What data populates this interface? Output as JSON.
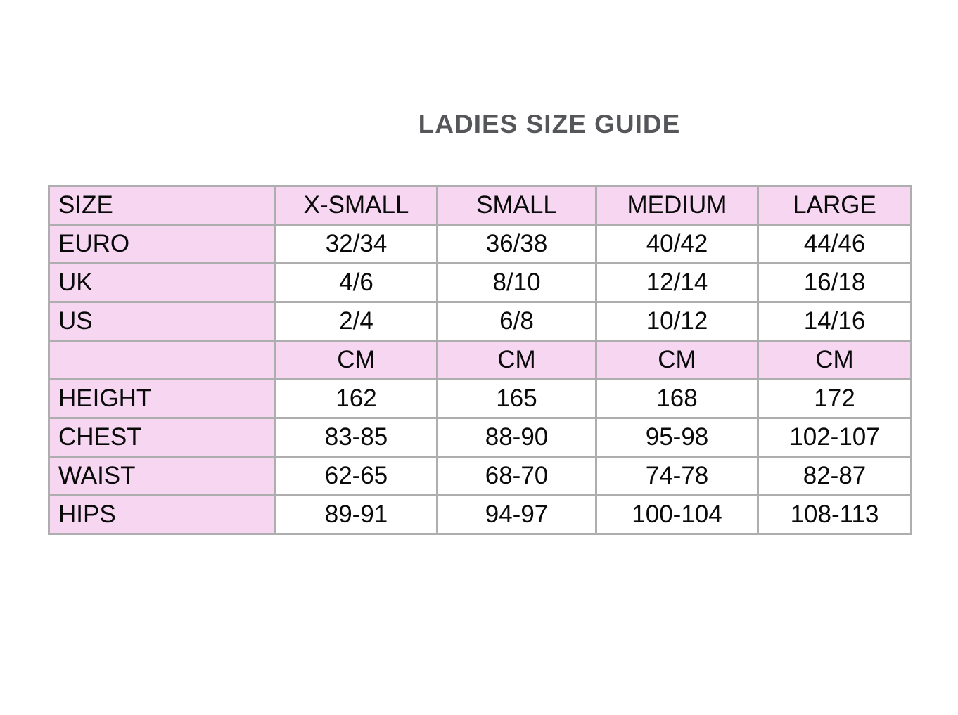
{
  "title": "LADIES SIZE GUIDE",
  "colors": {
    "row_pink": "#f7d6f2",
    "border_gray": "#aeaeae",
    "title_gray": "#55565a",
    "cell_text": "#0a0a0a",
    "background": "#ffffff"
  },
  "table": {
    "header": [
      "SIZE",
      "X-SMALL",
      "SMALL",
      "MEDIUM",
      "LARGE"
    ],
    "rows": [
      {
        "label": "EURO",
        "values": [
          "32/34",
          "36/38",
          "40/42",
          "44/46"
        ],
        "highlight": false
      },
      {
        "label": "UK",
        "values": [
          "4/6",
          "8/10",
          "12/14",
          "16/18"
        ],
        "highlight": false
      },
      {
        "label": "US",
        "values": [
          "2/4",
          "6/8",
          "10/12",
          "14/16"
        ],
        "highlight": false
      },
      {
        "label": "",
        "values": [
          "CM",
          "CM",
          "CM",
          "CM"
        ],
        "highlight": true
      },
      {
        "label": "HEIGHT",
        "values": [
          "162",
          "165",
          "168",
          "172"
        ],
        "highlight": false
      },
      {
        "label": "CHEST",
        "values": [
          "83-85",
          "88-90",
          "95-98",
          "102-107"
        ],
        "highlight": false
      },
      {
        "label": "WAIST",
        "values": [
          "62-65",
          "68-70",
          "74-78",
          "82-87"
        ],
        "highlight": false
      },
      {
        "label": "HIPS",
        "values": [
          "89-91",
          "94-97",
          "100-104",
          "108-113"
        ],
        "highlight": false
      }
    ]
  }
}
